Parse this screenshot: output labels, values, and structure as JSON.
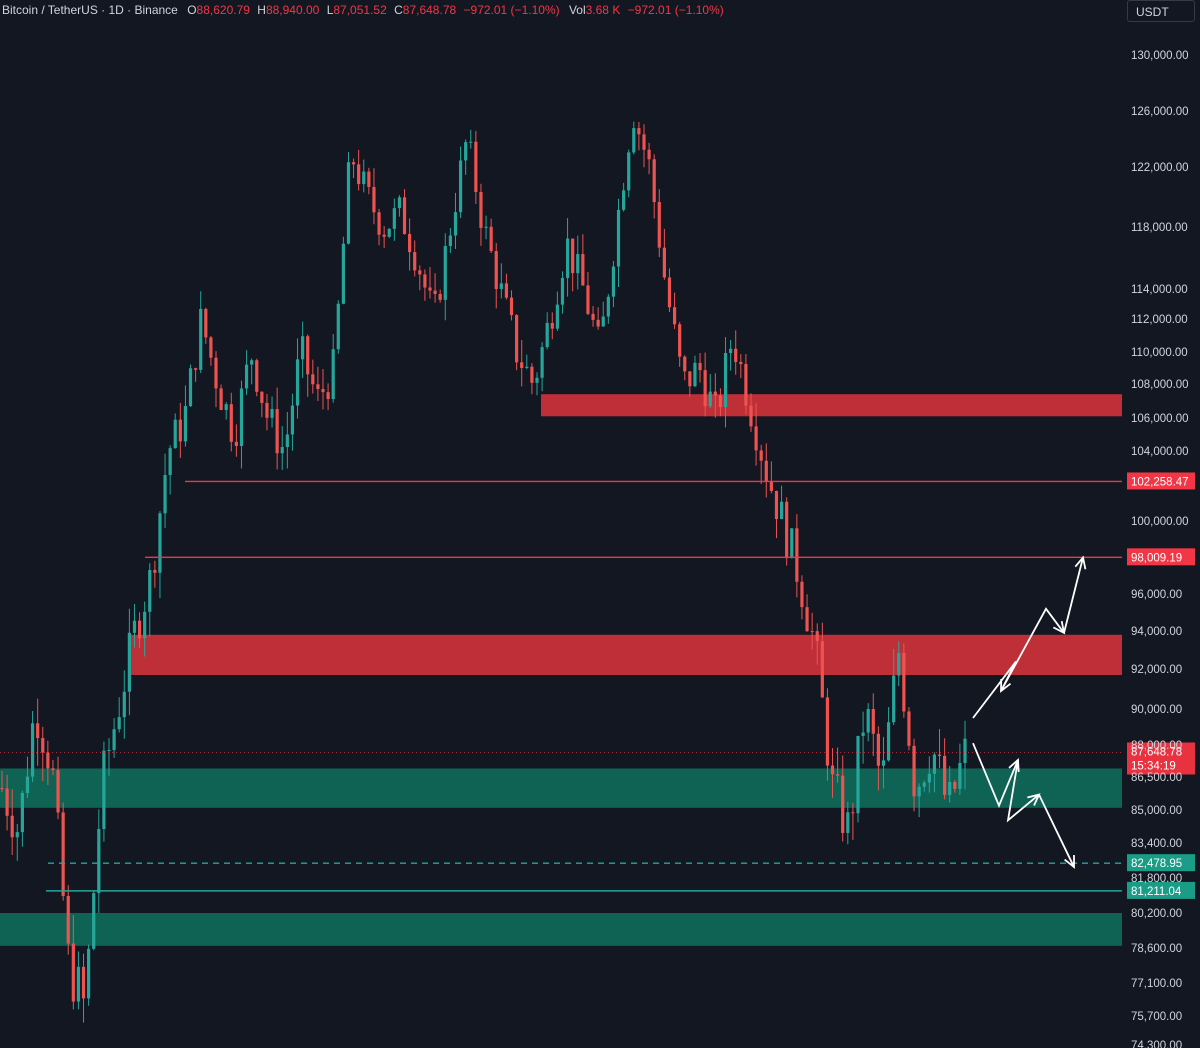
{
  "header": {
    "symbol": "Bitcoin / TetherUS · 1D · Binance",
    "open_label": "O",
    "open": "88,620.79",
    "high_label": "H",
    "high": "88,940.00",
    "low_label": "L",
    "low": "87,051.52",
    "close_label": "C",
    "close": "87,648.78",
    "change": "−972.01 (−1.10%)",
    "vol_label": "Vol",
    "vol": "3.68 K",
    "vol_change": "−972.01 (−1.10%)"
  },
  "axis_unit": "USDT",
  "colors": {
    "background": "#131722",
    "up": "#26a69a",
    "down": "#ef5350",
    "resistance_zone": "#c7303a",
    "support_zone": "#0f6b5a",
    "red_line": "#f23645",
    "green_line": "#26a69a",
    "arrow": "#ffffff",
    "axis_text": "#d1d4dc"
  },
  "chart_data": {
    "type": "candlestick",
    "title": "Bitcoin / TetherUS · 1D · Binance",
    "ylabel": "USDT",
    "ylim": [
      74300,
      131000
    ],
    "y_ticks": [
      "130,000.00",
      "126,000.00",
      "122,000.00",
      "118,000.00",
      "114,000.00",
      "112,000.00",
      "110,000.00",
      "108,000.00",
      "106,000.00",
      "104,000.00",
      "100,000.00",
      "96,000.00",
      "94,000.00",
      "92,000.00",
      "90,000.00",
      "88,000.00",
      "86,500.00",
      "85,000.00",
      "83,400.00",
      "81,800.00",
      "80,200.00",
      "78,600.00",
      "77,100.00",
      "75,700.00",
      "74,300.00"
    ],
    "price_path": [
      86000,
      84000,
      90000,
      87000,
      78000,
      76000,
      86000,
      90000,
      94000,
      97000,
      104000,
      106000,
      112000,
      108000,
      105000,
      110000,
      106000,
      104000,
      110000,
      107000,
      109000,
      123000,
      120000,
      118000,
      119000,
      116000,
      112000,
      118000,
      124000,
      118000,
      114000,
      110000,
      108000,
      112000,
      117000,
      114000,
      110000,
      118000,
      126000,
      122000,
      114000,
      108000,
      109000,
      106000,
      111000,
      107000,
      103000,
      100000,
      97000,
      93000,
      86000,
      84000,
      90000,
      86000,
      93000,
      86000,
      88000,
      85000,
      87600
    ],
    "levels": [
      {
        "label": "102,258.47",
        "value": 102258.47,
        "style": "solid",
        "color": "red"
      },
      {
        "label": "98,009.19",
        "value": 98009.19,
        "style": "solid",
        "color": "red"
      },
      {
        "label": "82,478.95",
        "value": 82478.95,
        "style": "dashed",
        "color": "green"
      },
      {
        "label": "81,211.04",
        "value": 81211.04,
        "style": "solid",
        "color": "green"
      }
    ],
    "current_price": {
      "label": "87,648.78",
      "countdown": "15:34:19",
      "value": 87648.78
    },
    "zones": [
      {
        "type": "resistance",
        "from": 106100,
        "to": 107400
      },
      {
        "type": "resistance",
        "from": 91700,
        "to": 93800
      },
      {
        "type": "support",
        "from": 85100,
        "to": 86900
      },
      {
        "type": "support",
        "from": 78700,
        "to": 80200
      }
    ],
    "projections": [
      {
        "name": "bullish",
        "points": [
          [
            89500,
            0
          ],
          [
            92400,
            1
          ],
          [
            90900,
            2
          ],
          [
            95200,
            3
          ],
          [
            93900,
            4
          ],
          [
            98000,
            5
          ]
        ]
      },
      {
        "name": "bearish",
        "points": [
          [
            88100,
            0
          ],
          [
            85200,
            1
          ],
          [
            87300,
            2
          ],
          [
            84500,
            3
          ],
          [
            85700,
            4
          ],
          [
            82300,
            5
          ]
        ]
      }
    ]
  }
}
